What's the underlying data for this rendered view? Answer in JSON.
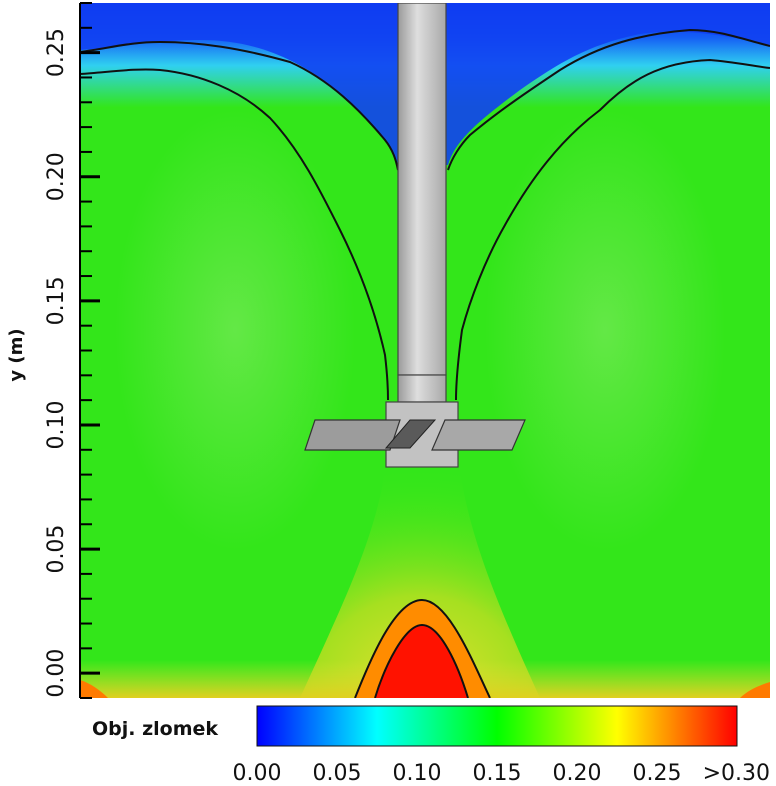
{
  "chart_data": {
    "type": "heatmap",
    "title": "",
    "xlabel": "",
    "ylabel": "y (m)",
    "ylim": [
      -0.01,
      0.27
    ],
    "y_ticks": [
      {
        "value": 0.25,
        "label": "0.25"
      },
      {
        "value": 0.2,
        "label": "0.20"
      },
      {
        "value": 0.15,
        "label": "0.15"
      },
      {
        "value": 0.1,
        "label": "0.10"
      },
      {
        "value": 0.05,
        "label": "0.05"
      },
      {
        "value": 0.0,
        "label": "0.00"
      }
    ],
    "colorbar": {
      "label": "Obj. zlomek",
      "range": [
        0.0,
        0.3
      ],
      "ticks": [
        {
          "value": 0.0,
          "label": "0.00"
        },
        {
          "value": 0.05,
          "label": "0.05"
        },
        {
          "value": 0.1,
          "label": "0.10"
        },
        {
          "value": 0.15,
          "label": "0.15"
        },
        {
          "value": 0.2,
          "label": "0.20"
        },
        {
          "value": 0.25,
          "label": "0.25"
        },
        {
          "value": 0.3,
          "label": ">0.30"
        }
      ],
      "colors": [
        "#0000ff",
        "#00ffff",
        "#00ff00",
        "#ffff00",
        "#ff0000"
      ]
    },
    "grid": false,
    "legend": "bottom",
    "field_colors": {
      "top": "#0a3cf0",
      "transition": "#33ccf5",
      "bulk": "#33e61a",
      "bulk_light": "#5be84a",
      "jet": "#a8e020",
      "bottom_yellow": "#d8e030",
      "hot": "#ff1a00",
      "contour": "#111111",
      "shaft": "#c7c7c7"
    }
  }
}
